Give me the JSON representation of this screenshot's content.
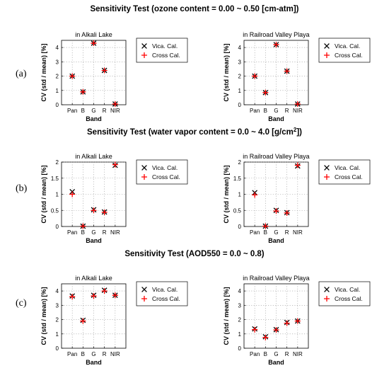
{
  "row_labels": [
    "(a)",
    "(b)",
    "(c)"
  ],
  "chart_data": [
    {
      "type": "scatter",
      "row": 0,
      "col": 0,
      "section_title": "Sensitivity Test (ozone content = 0.00 ~ 0.50 [cm-atm])",
      "title": "in Alkali Lake",
      "categories": [
        "Pan",
        "B",
        "G",
        "R",
        "NIR"
      ],
      "xlabel": "Band",
      "ylabel": "CV (std / mean) [%]",
      "ylim": [
        0,
        4.5
      ],
      "yticks": [
        0,
        1,
        2,
        3,
        4
      ],
      "grid": true,
      "legend_position": "right",
      "series": [
        {
          "name": "Vica. Cal.",
          "marker": "x",
          "color": "#000000",
          "values": [
            2.0,
            0.9,
            4.3,
            2.4,
            0.05
          ]
        },
        {
          "name": "Cross Cal.",
          "marker": "+",
          "color": "#ff0000",
          "values": [
            2.0,
            0.9,
            4.3,
            2.4,
            0.05
          ]
        }
      ]
    },
    {
      "type": "scatter",
      "row": 0,
      "col": 1,
      "title": "in Railroad Valley Playa",
      "categories": [
        "Pan",
        "B",
        "G",
        "R",
        "NIR"
      ],
      "xlabel": "Band",
      "ylabel": "CV (std / mean) [%]",
      "ylim": [
        0,
        4.5
      ],
      "yticks": [
        0,
        1,
        2,
        3,
        4
      ],
      "grid": true,
      "legend_position": "right",
      "series": [
        {
          "name": "Vica. Cal.",
          "marker": "x",
          "color": "#000000",
          "values": [
            2.0,
            0.85,
            4.2,
            2.35,
            0.05
          ]
        },
        {
          "name": "Cross Cal.",
          "marker": "+",
          "color": "#ff0000",
          "values": [
            2.0,
            0.85,
            4.2,
            2.35,
            0.05
          ]
        }
      ]
    },
    {
      "type": "scatter",
      "row": 1,
      "col": 0,
      "section_title": "Sensitivity Test (water vapor content = 0.0 ~ 4.0 [g/cm",
      "section_title_sup": "2",
      "section_title_end": "])",
      "title": "in Alkali Lake",
      "categories": [
        "Pan",
        "B",
        "G",
        "R",
        "NIR"
      ],
      "xlabel": "Band",
      "ylabel": "CV (std / mean) [%]",
      "ylim": [
        0,
        2
      ],
      "yticks": [
        0,
        0.5,
        1,
        1.5,
        2
      ],
      "grid": true,
      "legend_position": "right",
      "series": [
        {
          "name": "Vica. Cal.",
          "marker": "x",
          "color": "#000000",
          "values": [
            1.08,
            0.01,
            0.52,
            0.45,
            1.9
          ]
        },
        {
          "name": "Cross Cal.",
          "marker": "+",
          "color": "#ff0000",
          "values": [
            1.0,
            0.01,
            0.5,
            0.44,
            1.92
          ]
        }
      ]
    },
    {
      "type": "scatter",
      "row": 1,
      "col": 1,
      "title": "in Railroad Valley Playa",
      "categories": [
        "Pan",
        "B",
        "G",
        "R",
        "NIR"
      ],
      "xlabel": "Band",
      "ylabel": "CV (std / mean) [%]",
      "ylim": [
        0,
        2
      ],
      "yticks": [
        0,
        0.5,
        1,
        1.5,
        2
      ],
      "grid": true,
      "legend_position": "right",
      "series": [
        {
          "name": "Vica. Cal.",
          "marker": "x",
          "color": "#000000",
          "values": [
            1.05,
            0.01,
            0.5,
            0.43,
            1.88
          ]
        },
        {
          "name": "Cross Cal.",
          "marker": "+",
          "color": "#ff0000",
          "values": [
            0.98,
            0.01,
            0.48,
            0.42,
            1.9
          ]
        }
      ]
    },
    {
      "type": "scatter",
      "row": 2,
      "col": 0,
      "section_title": "Sensitivity Test (AOD550 = 0.0 ~ 0.8)",
      "title": "in Alkali Lake",
      "categories": [
        "Pan",
        "B",
        "G",
        "R",
        "NIR"
      ],
      "xlabel": "Band",
      "ylabel": "CV (std / mean) [%]",
      "ylim": [
        0,
        4.5
      ],
      "yticks": [
        0,
        1,
        2,
        3,
        4
      ],
      "grid": true,
      "legend_position": "right",
      "series": [
        {
          "name": "Vica. Cal.",
          "marker": "x",
          "color": "#000000",
          "values": [
            3.65,
            1.95,
            3.7,
            4.05,
            3.7
          ]
        },
        {
          "name": "Cross Cal.",
          "marker": "+",
          "color": "#ff0000",
          "values": [
            3.6,
            1.9,
            3.65,
            4.0,
            3.7
          ]
        }
      ]
    },
    {
      "type": "scatter",
      "row": 2,
      "col": 1,
      "title": "in Railroad Valley Playa",
      "categories": [
        "Pan",
        "B",
        "G",
        "R",
        "NIR"
      ],
      "xlabel": "Band",
      "ylabel": "CV (std / mean) [%]",
      "ylim": [
        0,
        4.5
      ],
      "yticks": [
        0,
        1,
        2,
        3,
        4
      ],
      "grid": true,
      "legend_position": "right",
      "series": [
        {
          "name": "Vica. Cal.",
          "marker": "x",
          "color": "#000000",
          "values": [
            1.35,
            0.8,
            1.3,
            1.8,
            1.9
          ]
        },
        {
          "name": "Cross Cal.",
          "marker": "+",
          "color": "#ff0000",
          "values": [
            1.3,
            0.75,
            1.28,
            1.75,
            1.9
          ]
        }
      ]
    }
  ]
}
